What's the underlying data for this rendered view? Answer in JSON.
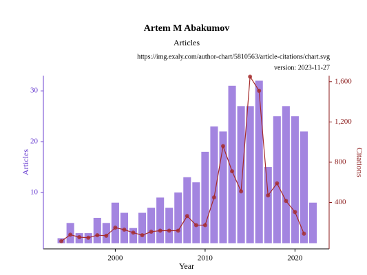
{
  "chart_data": {
    "type": "bar-line",
    "title": "Artem M Abakumov",
    "subtitle": "Articles",
    "source": "https://img.exaly.com/author-chart/5810563/article-citations/chart.svg",
    "version": "version: 2023-11-27",
    "x_label": "Year",
    "y_label": "Articles",
    "y2_label": "Citations",
    "x": [
      1994,
      1995,
      1996,
      1997,
      1998,
      1999,
      2000,
      2001,
      2002,
      2003,
      2004,
      2005,
      2006,
      2007,
      2008,
      2009,
      2010,
      2011,
      2012,
      2013,
      2014,
      2015,
      2016,
      2017,
      2018,
      2019,
      2020,
      2021,
      2022
    ],
    "series": [
      {
        "name": "Articles",
        "type": "bar",
        "color": "#9370db",
        "values": [
          1,
          4,
          2,
          2,
          5,
          4,
          8,
          6,
          3,
          6,
          7,
          9,
          7,
          10,
          13,
          12,
          18,
          23,
          22,
          31,
          27,
          27,
          32,
          15,
          25,
          27,
          25,
          22,
          8
        ]
      },
      {
        "name": "Citations",
        "type": "line",
        "axis": "y2",
        "color": "#a52a2a",
        "values": [
          15,
          80,
          55,
          50,
          75,
          70,
          150,
          130,
          100,
          75,
          110,
          120,
          120,
          120,
          265,
          175,
          175,
          450,
          960,
          710,
          510,
          1650,
          1510,
          470,
          590,
          415,
          305,
          90,
          null
        ]
      }
    ],
    "xlim": [
      1992,
      2023.8
    ],
    "xticks": [
      2000,
      2010,
      2020
    ],
    "ylim": [
      -1.1,
      33
    ],
    "yticks": [
      10,
      20,
      30
    ],
    "y2lim": [
      -61,
      1660
    ],
    "y2ticks": [
      {
        "value": 400,
        "label": "400"
      },
      {
        "value": 800,
        "label": "800"
      },
      {
        "value": 1200,
        "label": "1,200"
      },
      {
        "value": 1600,
        "label": "1,600"
      }
    ],
    "y_color": "#6a3fd0",
    "y2_color": "#8b1a1a"
  }
}
